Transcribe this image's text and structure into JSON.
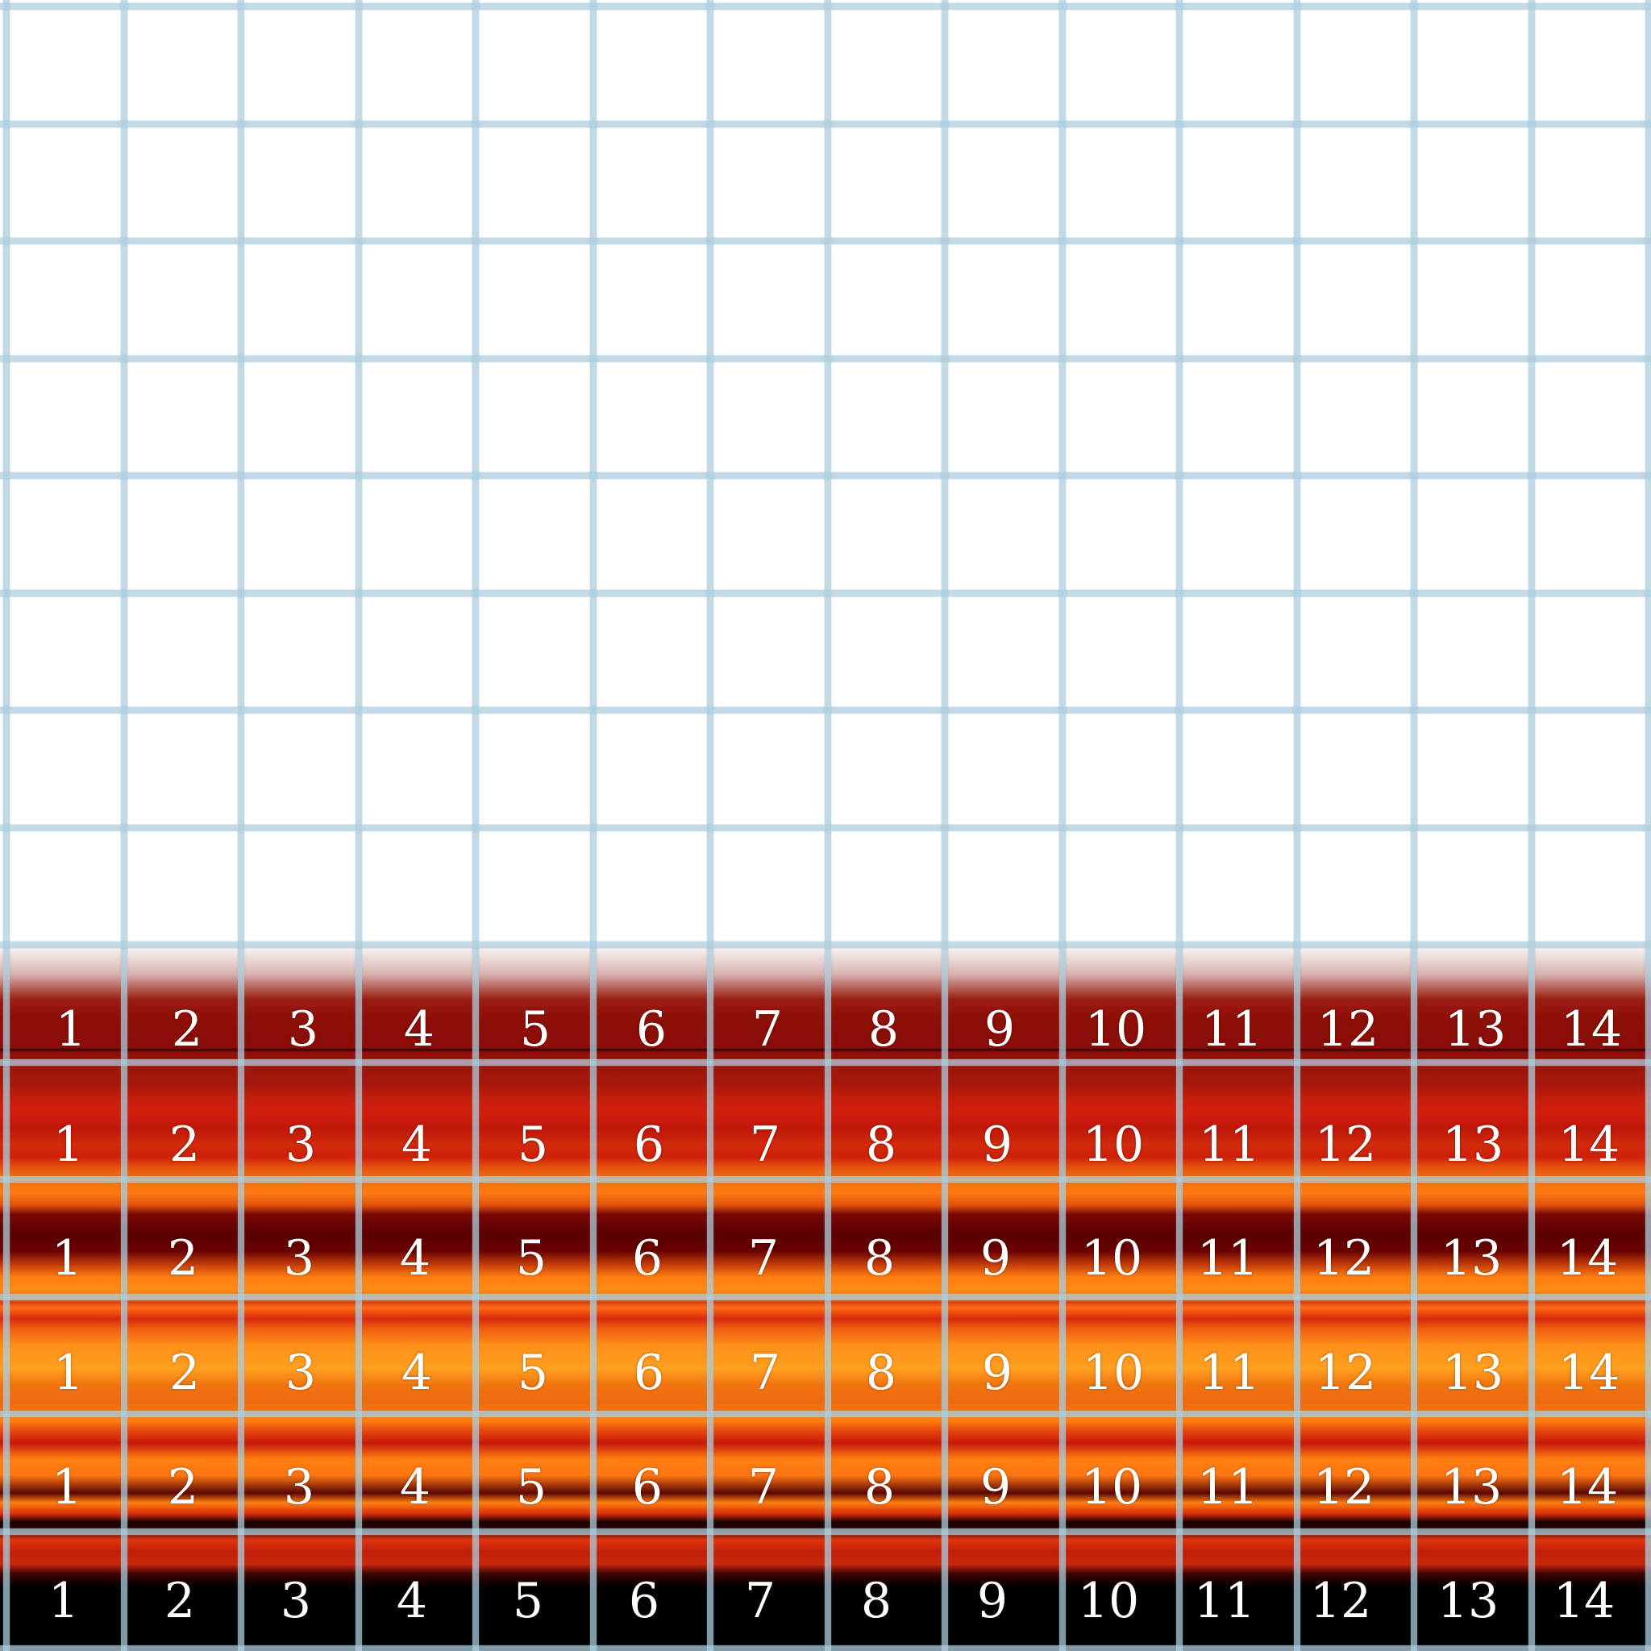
{
  "rows": [
    [
      "1",
      "2",
      "3",
      "4",
      "5",
      "6",
      "7",
      "8",
      "9",
      "10",
      "11",
      "12",
      "13",
      "14"
    ],
    [
      "1",
      "2",
      "3",
      "4",
      "5",
      "6",
      "7",
      "8",
      "9",
      "10",
      "11",
      "12",
      "13",
      "14"
    ],
    [
      "1",
      "2",
      "3",
      "4",
      "5",
      "6",
      "7",
      "8",
      "9",
      "10",
      "11",
      "12",
      "13",
      "14"
    ],
    [
      "1",
      "2",
      "3",
      "4",
      "5",
      "6",
      "7",
      "8",
      "9",
      "10",
      "11",
      "12",
      "13",
      "14"
    ],
    [
      "1",
      "2",
      "3",
      "4",
      "5",
      "6",
      "7",
      "8",
      "9",
      "10",
      "11",
      "12",
      "13",
      "14"
    ],
    [
      "1",
      "2",
      "3",
      "4",
      "5",
      "6",
      "7",
      "8",
      "9",
      "10",
      "11",
      "12",
      "13",
      "14"
    ]
  ],
  "colors": {
    "grid_line": "#acc6d6",
    "label_text": "#ffffff",
    "band_dark_red": "#8e0f08",
    "band_red": "#d21e0b",
    "band_orange": "#ff7f11",
    "band_black": "#000000"
  }
}
